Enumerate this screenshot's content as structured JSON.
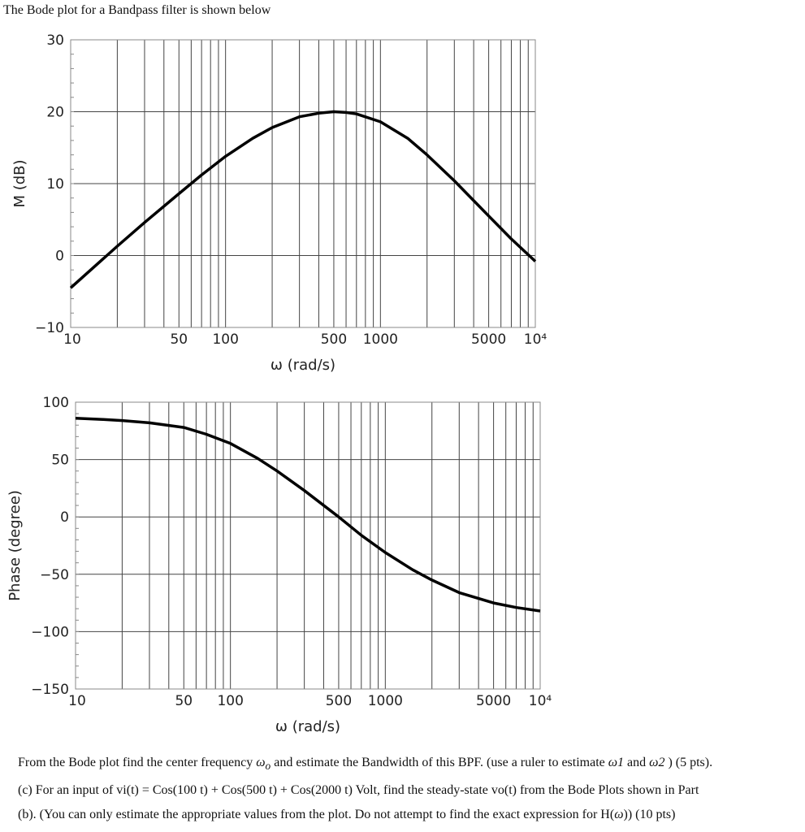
{
  "intro": "The Bode plot for a Bandpass filter is shown below",
  "chart_data": [
    {
      "type": "line",
      "title": "",
      "xlabel": "ω (rad/s)",
      "ylabel": "M (dB)",
      "xscale": "log",
      "xlim": [
        10,
        10000
      ],
      "ylim": [
        -10,
        30
      ],
      "grid": true,
      "xticks": [
        {
          "v": 10,
          "label": "10"
        },
        {
          "v": 50,
          "label": "50"
        },
        {
          "v": 100,
          "label": "100"
        },
        {
          "v": 500,
          "label": "500"
        },
        {
          "v": 1000,
          "label": "1000"
        },
        {
          "v": 5000,
          "label": "5000"
        },
        {
          "v": 10000,
          "label": "10⁴"
        }
      ],
      "yticks": [
        30,
        20,
        10,
        0,
        -10
      ],
      "series": [
        {
          "x": [
            10,
            20,
            30,
            50,
            70,
            100,
            150,
            200,
            300,
            400,
            500,
            600,
            700,
            1000,
            1500,
            2000,
            3000,
            5000,
            7000,
            10000
          ],
          "values": [
            -4.5,
            1.3,
            4.6,
            8.6,
            11.2,
            13.8,
            16.3,
            17.8,
            19.3,
            19.8,
            20.0,
            19.9,
            19.7,
            18.6,
            16.3,
            14.0,
            10.4,
            5.5,
            2.3,
            -0.8
          ]
        }
      ]
    },
    {
      "type": "line",
      "title": "",
      "xlabel": "ω (rad/s)",
      "ylabel": "Phase (degree)",
      "xscale": "log",
      "xlim": [
        10,
        10000
      ],
      "ylim": [
        -150,
        100
      ],
      "grid": true,
      "xticks": [
        {
          "v": 10,
          "label": "10"
        },
        {
          "v": 50,
          "label": "50"
        },
        {
          "v": 100,
          "label": "100"
        },
        {
          "v": 500,
          "label": "500"
        },
        {
          "v": 1000,
          "label": "1000"
        },
        {
          "v": 5000,
          "label": "5000"
        },
        {
          "v": 10000,
          "label": "10⁴"
        }
      ],
      "yticks": [
        100,
        50,
        0,
        -50,
        -100,
        -150
      ],
      "series": [
        {
          "x": [
            10,
            15,
            20,
            30,
            50,
            70,
            100,
            150,
            200,
            300,
            500,
            700,
            1000,
            1500,
            2000,
            3000,
            5000,
            7000,
            10000
          ],
          "values": [
            86,
            85,
            84,
            82,
            78,
            72,
            64,
            51,
            40,
            23,
            0,
            -16,
            -31,
            -46,
            -55,
            -66,
            -75,
            -79,
            -82
          ]
        }
      ]
    }
  ],
  "question": {
    "line1_pre": "From the Bode plot find the center frequency ",
    "w0": "ω",
    "w0_sub": "o",
    "line1_mid": " and estimate the Bandwidth of this BPF. (use a ruler to estimate ",
    "w1": "ω1",
    "line1_and": " and ",
    "w2": "ω2",
    "line1_post": " ) (5 pts).",
    "line2": "(c) For an input of vi(t) = Cos(100 t) + Cos(500 t) + Cos(2000 t) Volt, find the steady-state vo(t) from the Bode Plots shown in Part",
    "line3_pre": "(b). (You can only estimate the appropriate values from the plot. Do not attempt to find the exact expression for H(",
    "line3_w": "ω",
    "line3_post": ")) (10 pts)"
  }
}
